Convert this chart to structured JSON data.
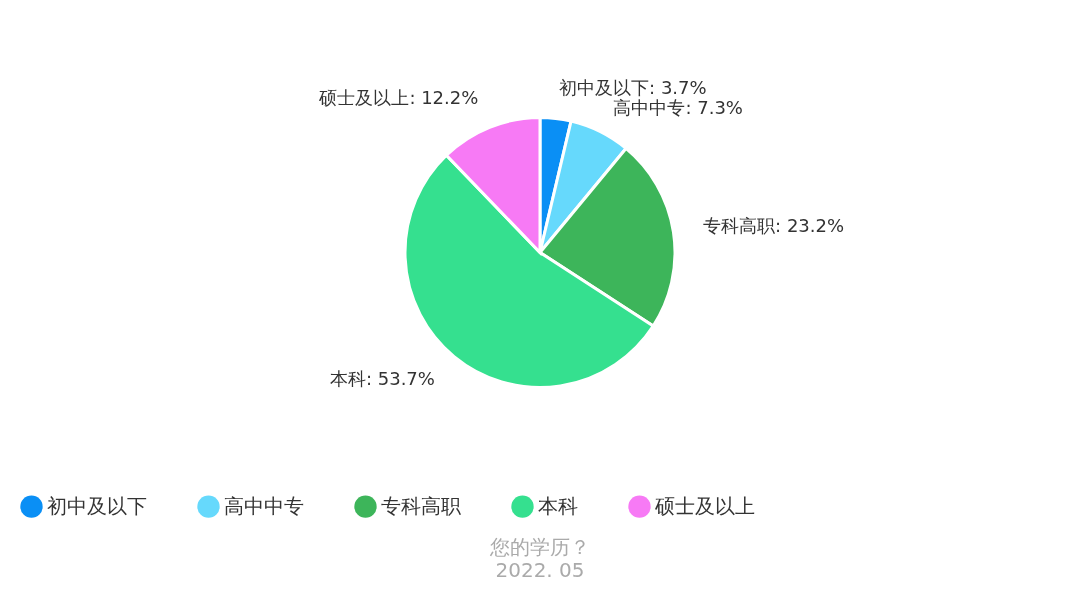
{
  "chart_data": {
    "type": "pie",
    "title": "您的学历？",
    "categories": [
      "初中及以下",
      "高中中专",
      "专科高职",
      "本科",
      "硕士及以上"
    ],
    "values": [
      3.7,
      7.3,
      23.2,
      53.7,
      12.2
    ],
    "value_labels": [
      "初中及以下: 3.7%",
      "高中中专: 7.3%",
      "专科高职: 23.2%",
      "本科: 53.7%",
      "硕士及以上: 12.2%"
    ],
    "colors": [
      "#0a8ff5",
      "#66d9fc",
      "#3db55a",
      "#35e08f",
      "#f77af5"
    ],
    "legend": "bottom",
    "annotations": [
      "2022. 05"
    ]
  }
}
